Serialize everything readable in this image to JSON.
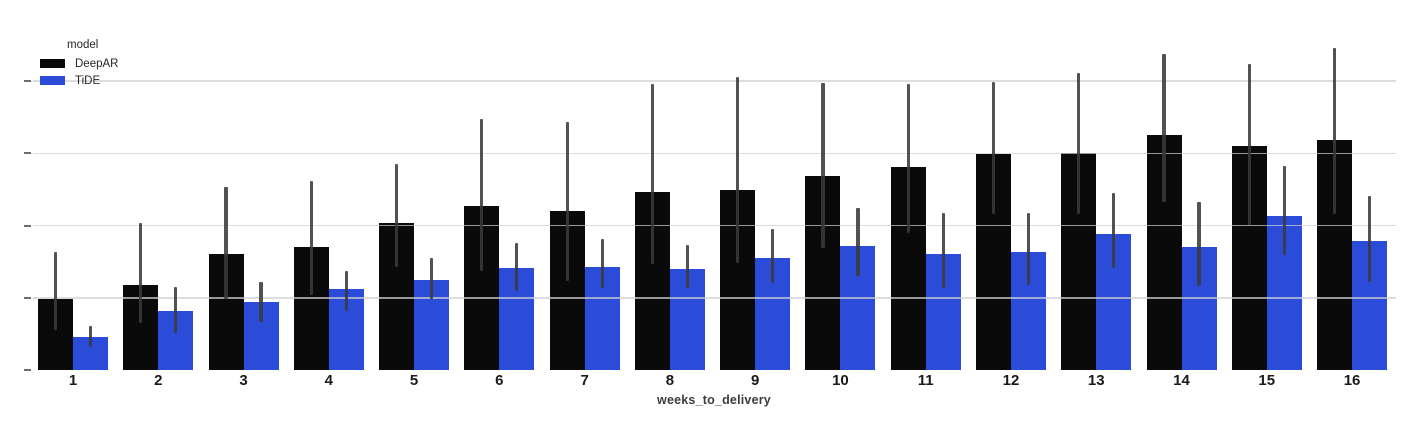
{
  "legend": {
    "title": "model",
    "items": [
      {
        "label": "DeepAR",
        "color": "#0a0a0a"
      },
      {
        "label": "TiDE",
        "color": "#2a4cd9"
      }
    ]
  },
  "chart_data": {
    "type": "bar",
    "title": "",
    "xlabel": "weeks_to_delivery",
    "ylabel": "",
    "categories": [
      "1",
      "2",
      "3",
      "4",
      "5",
      "6",
      "7",
      "8",
      "9",
      "10",
      "11",
      "12",
      "13",
      "14",
      "15",
      "16"
    ],
    "series": [
      {
        "name": "DeepAR",
        "color": "#0a0a0a",
        "values": [
          0.98,
          1.18,
          1.6,
          1.7,
          2.04,
          2.27,
          2.2,
          2.46,
          2.49,
          2.69,
          2.81,
          2.99,
          3.0,
          3.25,
          3.1,
          3.18
        ],
        "error_low": [
          0.56,
          0.65,
          0.98,
          1.04,
          1.43,
          1.37,
          1.23,
          1.47,
          1.48,
          1.69,
          1.9,
          2.16,
          2.16,
          2.33,
          2.01,
          2.16
        ],
        "error_high": [
          1.64,
          2.03,
          2.53,
          2.62,
          2.85,
          3.47,
          3.43,
          3.96,
          4.06,
          3.97,
          3.96,
          3.99,
          4.11,
          4.38,
          4.23,
          4.46
        ]
      },
      {
        "name": "TiDE",
        "color": "#2a4cd9",
        "values": [
          0.46,
          0.82,
          0.94,
          1.12,
          1.25,
          1.41,
          1.43,
          1.4,
          1.55,
          1.72,
          1.61,
          1.63,
          1.88,
          1.7,
          2.13,
          1.79
        ],
        "error_low": [
          0.32,
          0.51,
          0.66,
          0.82,
          0.98,
          1.09,
          1.13,
          1.13,
          1.2,
          1.3,
          1.13,
          1.18,
          1.41,
          1.16,
          1.59,
          1.22
        ],
        "error_high": [
          0.61,
          1.15,
          1.22,
          1.37,
          1.55,
          1.76,
          1.81,
          1.73,
          1.95,
          2.24,
          2.17,
          2.17,
          2.45,
          2.33,
          2.82,
          2.41
        ]
      }
    ],
    "ylim": [
      0,
      5
    ],
    "y_gridlines": [
      1,
      2,
      3,
      4
    ],
    "y_ticks": [
      0,
      1,
      2,
      3,
      4
    ],
    "y_tick_labels": [],
    "legend_position": "upper left",
    "grid": "horizontal gridlines drawn over bars",
    "note": "y-axis shows tick marks without visible labels; values estimated in gridline units (1 gridline interval = 1 unit)"
  },
  "colors": {
    "background": "#ffffff",
    "gridline": "rgba(208,208,208,0.72)",
    "error_bar": "rgba(58,58,58,0.88)",
    "y_tick": "#6e6e6e"
  }
}
